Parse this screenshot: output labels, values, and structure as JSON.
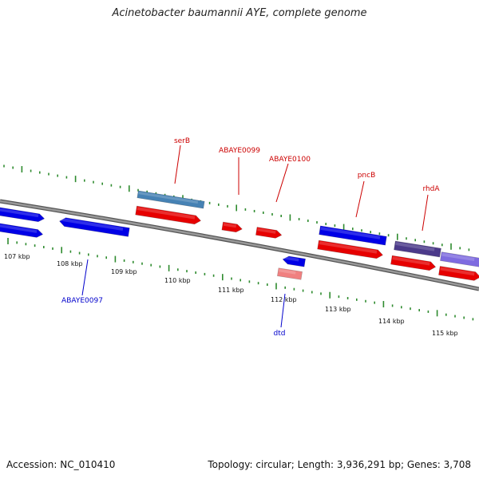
{
  "title": "Acinetobacter baumannii AYE, complete genome",
  "footer": {
    "accession": "Accession: NC_010410",
    "summary": "Topology: circular; Length: 3,936,291 bp; Genes: 3,708"
  },
  "colors": {
    "backbone": "#8a8a8a",
    "tick": "#2e8b2e",
    "cds_forward": "#0000e6",
    "cds_reverse": "#e60000",
    "label_upper": "#cc0000",
    "label_lower": "#0000cc",
    "serB_gene": "#4682b4",
    "rhdA_gene": "#4b3a8a",
    "rhdA_gene_2": "#7e6be0",
    "dtd_cds": "#f08080"
  },
  "tick_labels": [
    "107 kbp",
    "108 kbp",
    "109 kbp",
    "110 kbp",
    "111 kbp",
    "112 kbp",
    "113 kbp",
    "114 kbp",
    "115 kbp"
  ],
  "gene_labels_upper": [
    "serB",
    "ABAYE0099",
    "ABAYE0100",
    "pncB",
    "rhdA"
  ],
  "gene_labels_lower": [
    "ABAYE0097",
    "dtd"
  ]
}
